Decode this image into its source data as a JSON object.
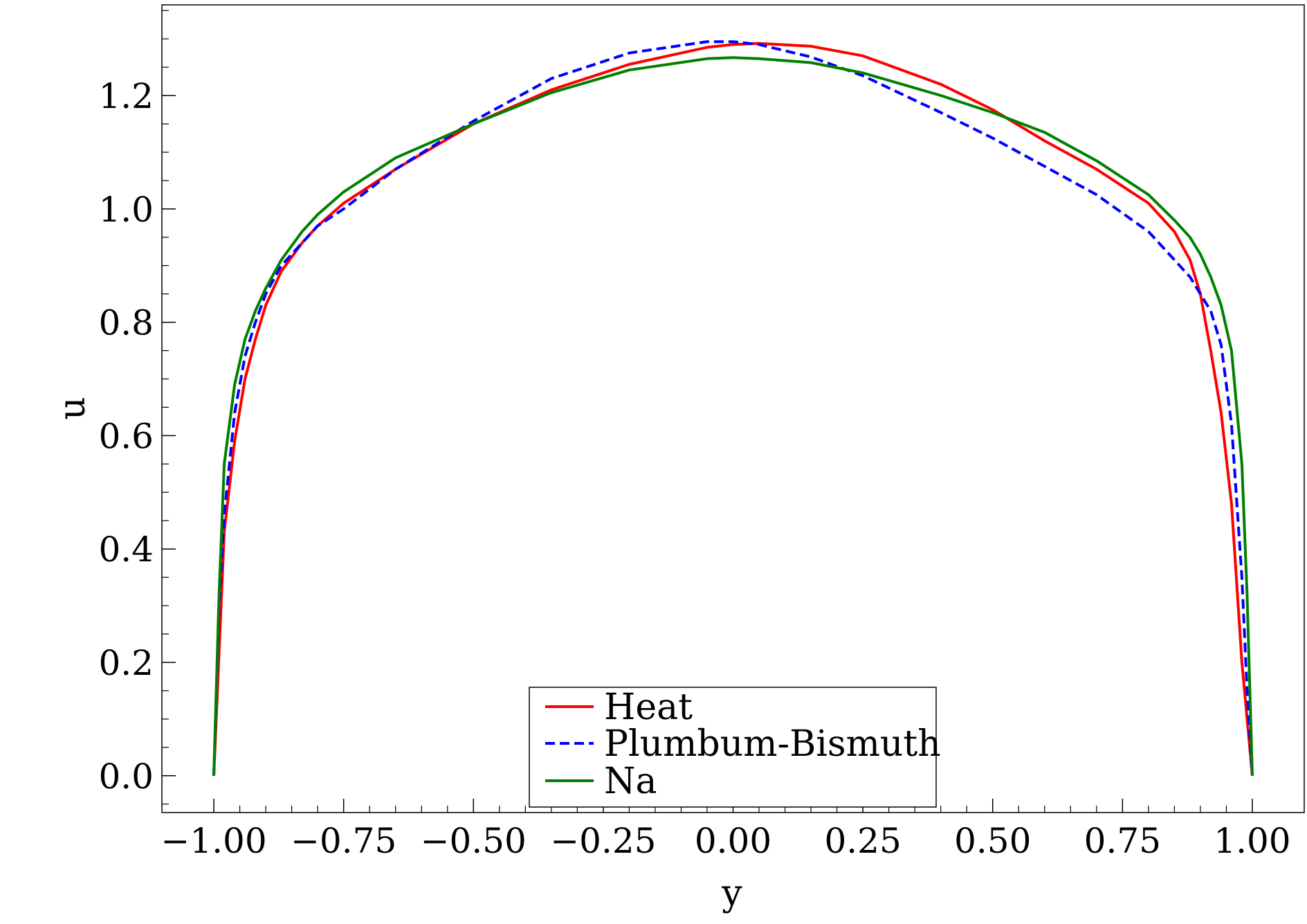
{
  "chart_data": {
    "type": "line",
    "title": "",
    "xlabel": "y",
    "ylabel": "u",
    "xlim": [
      -1.1,
      1.1
    ],
    "ylim": [
      -0.065,
      1.36
    ],
    "x_ticks": [
      -1.0,
      -0.75,
      -0.5,
      -0.25,
      0.0,
      0.25,
      0.5,
      0.75,
      1.0
    ],
    "x_tick_labels": [
      "−1.00",
      "−0.75",
      "−0.50",
      "−0.25",
      "0.00",
      "0.25",
      "0.50",
      "0.75",
      "1.00"
    ],
    "y_ticks": [
      0.0,
      0.2,
      0.4,
      0.6,
      0.8,
      1.0,
      1.2
    ],
    "y_tick_labels": [
      "0.0",
      "0.2",
      "0.4",
      "0.6",
      "0.8",
      "1.0",
      "1.2"
    ],
    "grid": false,
    "legend_position": "bottom-center",
    "series": [
      {
        "name": "Heat",
        "color": "#ff0000",
        "dash": "solid",
        "x": [
          -1.0,
          -0.98,
          -0.96,
          -0.94,
          -0.92,
          -0.9,
          -0.87,
          -0.83,
          -0.8,
          -0.75,
          -0.65,
          -0.5,
          -0.35,
          -0.2,
          -0.05,
          0.0,
          0.05,
          0.15,
          0.25,
          0.4,
          0.5,
          0.6,
          0.7,
          0.8,
          0.85,
          0.88,
          0.9,
          0.92,
          0.94,
          0.96,
          0.98,
          1.0
        ],
        "y": [
          0.0,
          0.43,
          0.59,
          0.7,
          0.77,
          0.83,
          0.89,
          0.94,
          0.97,
          1.01,
          1.07,
          1.15,
          1.21,
          1.255,
          1.285,
          1.29,
          1.292,
          1.287,
          1.27,
          1.22,
          1.175,
          1.12,
          1.07,
          1.01,
          0.96,
          0.91,
          0.85,
          0.75,
          0.64,
          0.48,
          0.2,
          0.0
        ]
      },
      {
        "name": "Plumbum-Bismuth",
        "color": "#0000ff",
        "dash": "dashed",
        "x": [
          -1.0,
          -0.99,
          -0.98,
          -0.96,
          -0.94,
          -0.92,
          -0.9,
          -0.87,
          -0.83,
          -0.8,
          -0.75,
          -0.65,
          -0.5,
          -0.35,
          -0.2,
          -0.05,
          0.0,
          0.05,
          0.15,
          0.25,
          0.4,
          0.5,
          0.6,
          0.7,
          0.8,
          0.85,
          0.88,
          0.9,
          0.92,
          0.94,
          0.96,
          0.98,
          0.99,
          1.0
        ],
        "y": [
          0.0,
          0.3,
          0.46,
          0.64,
          0.74,
          0.8,
          0.85,
          0.9,
          0.94,
          0.97,
          1.0,
          1.07,
          1.155,
          1.23,
          1.275,
          1.295,
          1.295,
          1.29,
          1.268,
          1.235,
          1.17,
          1.125,
          1.075,
          1.025,
          0.96,
          0.91,
          0.88,
          0.85,
          0.82,
          0.76,
          0.62,
          0.35,
          0.15,
          0.0
        ]
      },
      {
        "name": "Na",
        "color": "#008000",
        "dash": "solid",
        "x": [
          -1.0,
          -0.99,
          -0.98,
          -0.96,
          -0.94,
          -0.92,
          -0.9,
          -0.87,
          -0.83,
          -0.8,
          -0.75,
          -0.65,
          -0.5,
          -0.35,
          -0.2,
          -0.05,
          0.0,
          0.05,
          0.15,
          0.25,
          0.4,
          0.5,
          0.6,
          0.7,
          0.8,
          0.85,
          0.88,
          0.9,
          0.92,
          0.94,
          0.96,
          0.98,
          0.99,
          1.0
        ],
        "y": [
          0.0,
          0.32,
          0.55,
          0.69,
          0.77,
          0.82,
          0.86,
          0.91,
          0.96,
          0.99,
          1.03,
          1.09,
          1.15,
          1.205,
          1.245,
          1.265,
          1.267,
          1.265,
          1.258,
          1.24,
          1.2,
          1.17,
          1.135,
          1.085,
          1.025,
          0.98,
          0.95,
          0.92,
          0.88,
          0.83,
          0.75,
          0.55,
          0.32,
          0.0
        ]
      }
    ]
  }
}
